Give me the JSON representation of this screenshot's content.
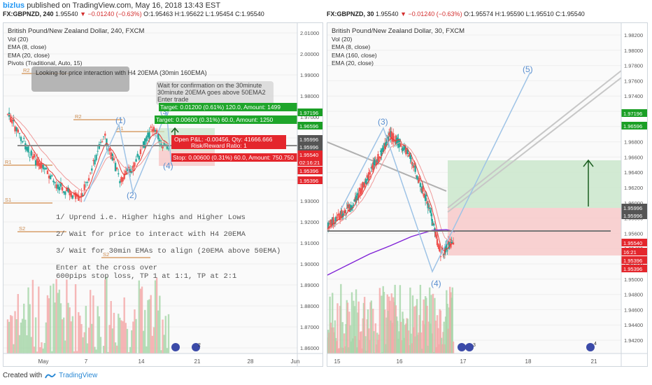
{
  "header": {
    "author": "bizlus",
    "published": "published on TradingView.com, May 16, 2018 13:43 EST"
  },
  "left": {
    "ticker": {
      "symbol": "FX:GBPNZD, 240",
      "last": "1.95540",
      "change": "▼ −0.01240 (−0.63%)",
      "ohlc": "O:1.95463 H:1.95622 L:1.95454 C:1.95540"
    },
    "legend": [
      "British Pound/New Zealand Dollar, 240, FXCM",
      "Vol (20)",
      "EMA (8, close)",
      "EMA (20, close)",
      "Pivots (Traditional, Auto, 15)"
    ],
    "price_axis": [
      "2.01000",
      "2.00000",
      "1.99000",
      "1.98000",
      "1.97000",
      "1.96000",
      "1.95000",
      "1.94000",
      "1.93000",
      "1.92000",
      "1.91000",
      "1.90000",
      "1.89000",
      "1.88000",
      "1.87000",
      "1.86000"
    ],
    "price_tags": [
      {
        "text": "1.97196",
        "color": "#1a9f25"
      },
      {
        "text": "1.96596",
        "color": "#1a9f25"
      },
      {
        "text": "1.95996",
        "color": "#555555"
      },
      {
        "text": "1.95996",
        "color": "#555555"
      },
      {
        "text": "1.95540",
        "color": "#e4262c"
      },
      {
        "text": "02:16:21",
        "color": "#e4262c"
      },
      {
        "text": "1.95396",
        "color": "#e4262c"
      },
      {
        "text": "1.95396",
        "color": "#e4262c"
      }
    ],
    "time_axis": [
      "May",
      "7",
      "14",
      "21",
      "28",
      "Jun"
    ],
    "pivots": [
      "R2",
      "R2",
      "R1",
      "R1",
      "S1",
      "S2",
      "S2"
    ],
    "waves": [
      "(1)",
      "(2)",
      "(3)",
      "(4)"
    ],
    "callout1": "Looking for price interaction with H4 20EMA (30min 160EMA)",
    "callout2": "Wait for confirmation on the 30minute 30minute 20EMA goes above 50EMA2 Enter trade",
    "target1": "Target: 0.01200 (0.61%) 120.0, Amount: 1499",
    "target2": "Target: 0.00600 (0.31%) 60.0, Amount: 1250",
    "open_pl": "Open P&L: -0.00456, Qty: 41666.666",
    "risk_reward": "Risk/Reward Ratio: 1",
    "stop": "Stop: 0.00600 (0.31%) 60.0, Amount: 750.750",
    "notes": [
      "1/ Uprend i.e. Higher highs and Higher Lows",
      "2/ Wait for price to interact with H4 20EMA",
      "3/ Wait for 30min EMAs to align (20EMA above 50EMA)",
      "Enter at the cross over\n600pips stop loss, TP 1 at 1:1, TP at 2:1"
    ],
    "event_badge": "2"
  },
  "right": {
    "ticker": {
      "symbol": "FX:GBPNZD, 30",
      "last": "1.95540",
      "change": "▼ −0.01240 (−0.63%)",
      "ohlc": "O:1.95574 H:1.95590 L:1.95510 C:1.95540"
    },
    "legend": [
      "British Pound/New Zealand Dollar, 30, FXCM",
      "Vol (20)",
      "EMA (8, close)",
      "EMA (160, close)",
      "EMA (20, close)"
    ],
    "price_axis": [
      "1.98200",
      "1.98000",
      "1.97800",
      "1.97600",
      "1.97400",
      "1.97200",
      "1.97000",
      "1.96800",
      "1.96600",
      "1.96400",
      "1.96200",
      "1.96000",
      "1.95800",
      "1.95600",
      "1.95400",
      "1.95200",
      "1.95000",
      "1.94800",
      "1.94600",
      "1.94400",
      "1.94200"
    ],
    "price_tags": [
      {
        "text": "1.97196",
        "color": "#1a9f25"
      },
      {
        "text": "1.96596",
        "color": "#1a9f25"
      },
      {
        "text": "1.95996",
        "color": "#555555"
      },
      {
        "text": "1.95996",
        "color": "#555555"
      },
      {
        "text": "1.95540",
        "color": "#e4262c"
      },
      {
        "text": "16:21",
        "color": "#e4262c"
      },
      {
        "text": "1.95396",
        "color": "#e4262c"
      },
      {
        "text": "1.95396",
        "color": "#e4262c"
      }
    ],
    "time_axis": [
      "15",
      "16",
      "17",
      "18",
      "21"
    ],
    "waves": [
      "(3)",
      "(4)",
      "(5)"
    ],
    "event_badges": [
      "3",
      "4"
    ]
  },
  "footer": {
    "created_with": "Created with",
    "brand": "TradingView"
  },
  "colors": {
    "up": "#26a69a",
    "down": "#ef5350",
    "ema8": "#e53935",
    "ema20": "#ef9a9a",
    "ema160": "#7e1fd6",
    "profit": "#c8e6c9",
    "loss": "#f8c7c7",
    "wave": "#9ec3e6"
  }
}
